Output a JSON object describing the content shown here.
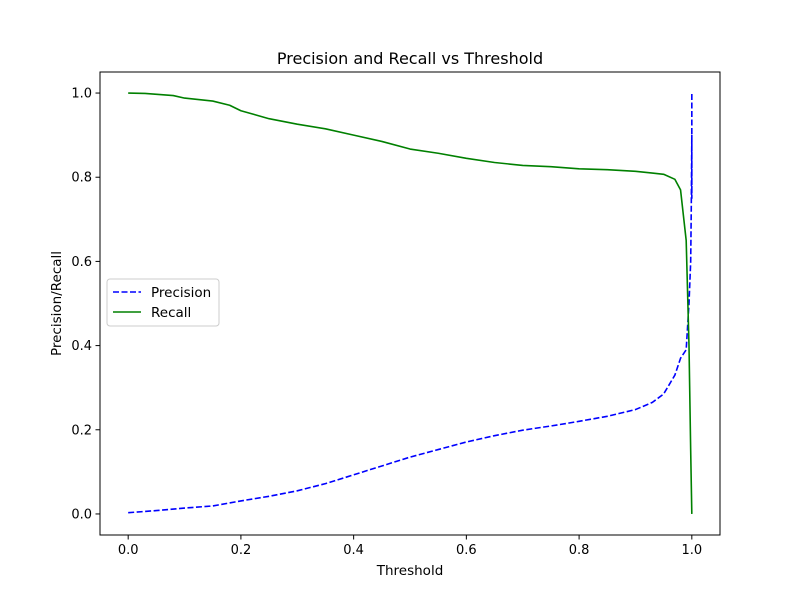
{
  "chart_data": {
    "type": "line",
    "title": "Precision and Recall vs Threshold",
    "xlabel": "Threshold",
    "ylabel": "Precision/Recall",
    "xlim": [
      -0.05,
      1.05
    ],
    "ylim": [
      -0.05,
      1.05
    ],
    "x_ticks": [
      0.0,
      0.2,
      0.4,
      0.6,
      0.8,
      1.0
    ],
    "x_tick_labels": [
      "0.0",
      "0.2",
      "0.4",
      "0.6",
      "0.8",
      "1.0"
    ],
    "y_ticks": [
      0.0,
      0.2,
      0.4,
      0.6,
      0.8,
      1.0
    ],
    "y_tick_labels": [
      "0.0",
      "0.2",
      "0.4",
      "0.6",
      "0.8",
      "1.0"
    ],
    "grid": false,
    "legend_position": "center-left",
    "series": [
      {
        "name": "Precision",
        "color": "#0000ff",
        "style": "dashed",
        "x": [
          0.0,
          0.05,
          0.1,
          0.15,
          0.2,
          0.25,
          0.3,
          0.35,
          0.4,
          0.45,
          0.5,
          0.55,
          0.6,
          0.65,
          0.7,
          0.75,
          0.8,
          0.85,
          0.9,
          0.93,
          0.95,
          0.97,
          0.98,
          0.99,
          0.995,
          0.998,
          0.999,
          1.0,
          1.0,
          1.0,
          1.0
        ],
        "y": [
          0.003,
          0.008,
          0.014,
          0.019,
          0.031,
          0.042,
          0.055,
          0.072,
          0.093,
          0.114,
          0.135,
          0.153,
          0.171,
          0.186,
          0.199,
          0.209,
          0.22,
          0.232,
          0.248,
          0.265,
          0.285,
          0.33,
          0.37,
          0.39,
          0.5,
          0.6,
          0.72,
          0.9,
          0.75,
          0.88,
          0.998
        ]
      },
      {
        "name": "Recall",
        "color": "#008000",
        "style": "solid",
        "x": [
          0.0,
          0.03,
          0.08,
          0.1,
          0.15,
          0.18,
          0.2,
          0.25,
          0.3,
          0.35,
          0.4,
          0.45,
          0.5,
          0.55,
          0.6,
          0.65,
          0.7,
          0.75,
          0.8,
          0.85,
          0.9,
          0.93,
          0.95,
          0.97,
          0.98,
          0.99,
          0.995,
          0.998,
          1.0
        ],
        "y": [
          1.0,
          0.999,
          0.994,
          0.988,
          0.981,
          0.971,
          0.958,
          0.939,
          0.926,
          0.915,
          0.9,
          0.885,
          0.867,
          0.857,
          0.845,
          0.835,
          0.828,
          0.825,
          0.82,
          0.818,
          0.814,
          0.81,
          0.807,
          0.795,
          0.77,
          0.65,
          0.4,
          0.15,
          0.0
        ]
      }
    ]
  }
}
